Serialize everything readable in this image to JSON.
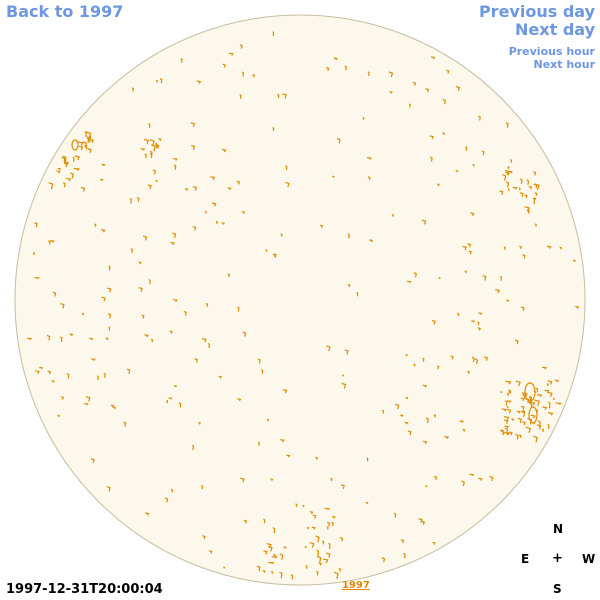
{
  "nav": {
    "back_label": "Back to 1997",
    "previous_day_label": "Previous day",
    "next_day_label": "Next day",
    "previous_hour_label": "Previous hour",
    "next_hour_label": "Next hour"
  },
  "footer": {
    "timestamp": "1997-12-31T20:00:04",
    "year_link": "1997"
  },
  "compass": {
    "north": "N",
    "east": "E",
    "center": "+",
    "west": "W",
    "south": "S"
  },
  "colors": {
    "link": "#6d97e0",
    "disk_fill": "#fdf8ec",
    "disk_outline": "#c8bca0",
    "contour": "#e08a00"
  }
}
